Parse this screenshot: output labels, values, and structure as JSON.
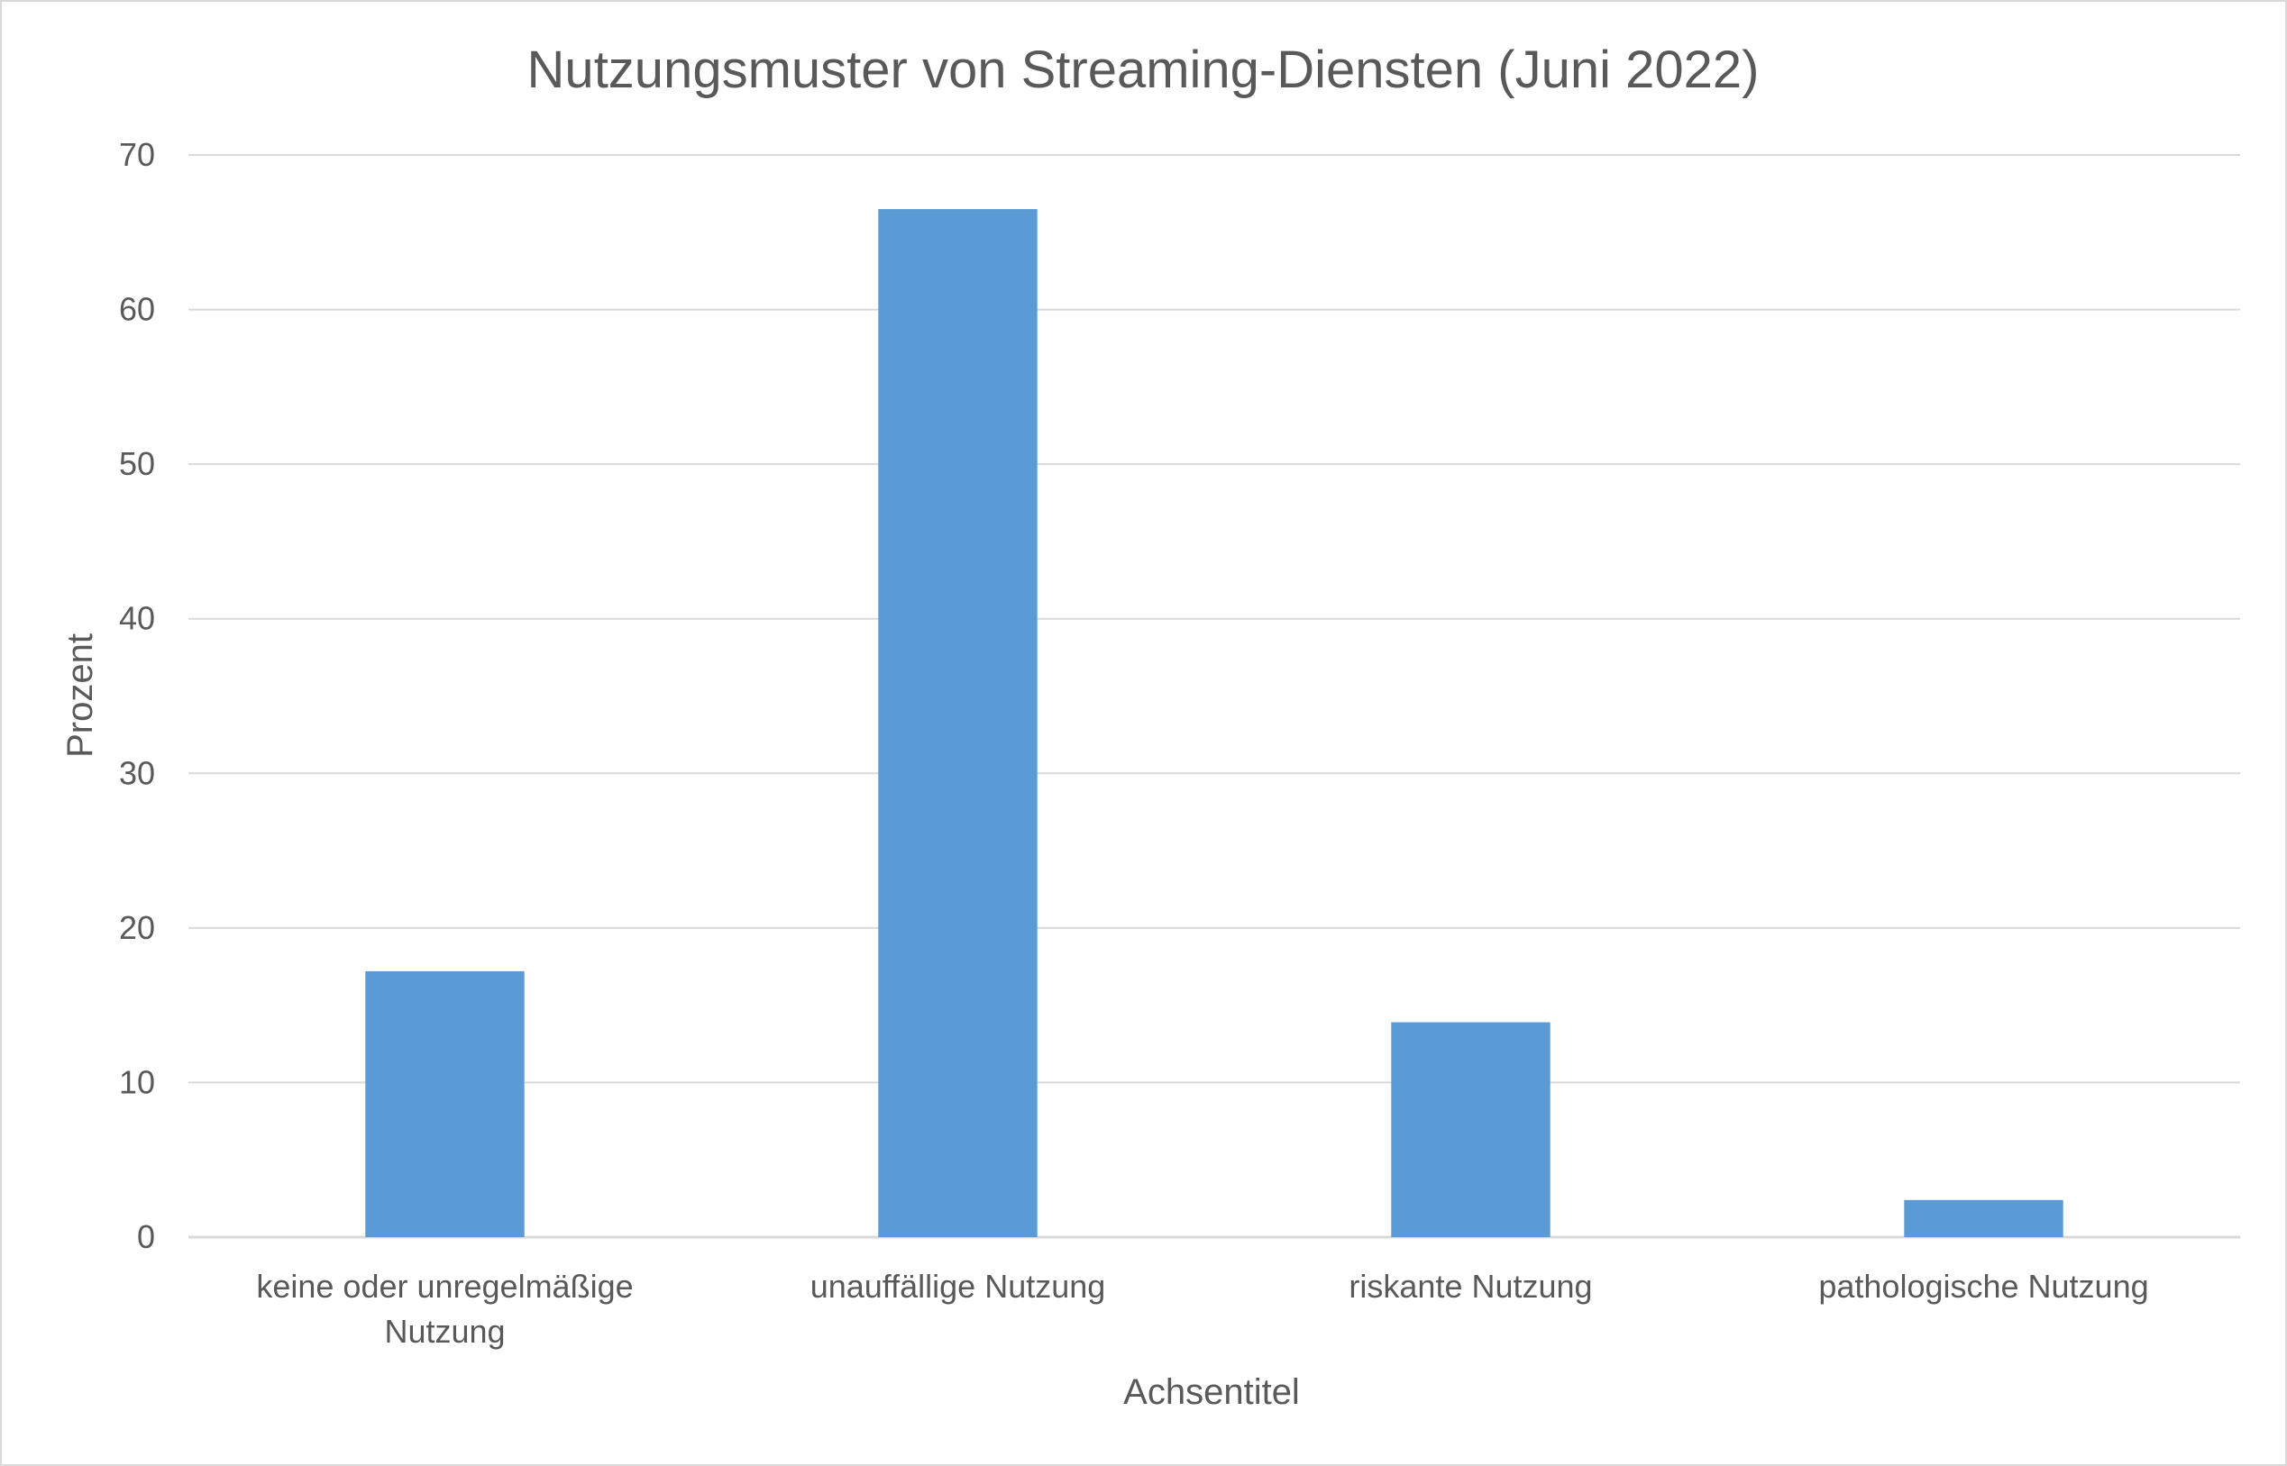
{
  "chart_data": {
    "type": "bar",
    "title": "Nutzungsmuster von Streaming-Diensten (Juni 2022)",
    "xlabel": "Achsentitel",
    "ylabel": "Prozent",
    "categories": [
      [
        "keine oder unregelmäßige",
        "Nutzung"
      ],
      [
        "unauffällige Nutzung"
      ],
      [
        "riskante Nutzung"
      ],
      [
        "pathologische Nutzung"
      ]
    ],
    "values": [
      17.2,
      66.5,
      13.9,
      2.4
    ],
    "ylim": [
      0,
      70
    ],
    "yticks": [
      0,
      10,
      20,
      30,
      40,
      50,
      60,
      70
    ],
    "grid": true,
    "legend": "none",
    "colors": {
      "bar": "#5b9bd5",
      "grid": "#d9d9d9",
      "axis": "#d9d9d9",
      "text": "#595959"
    }
  }
}
